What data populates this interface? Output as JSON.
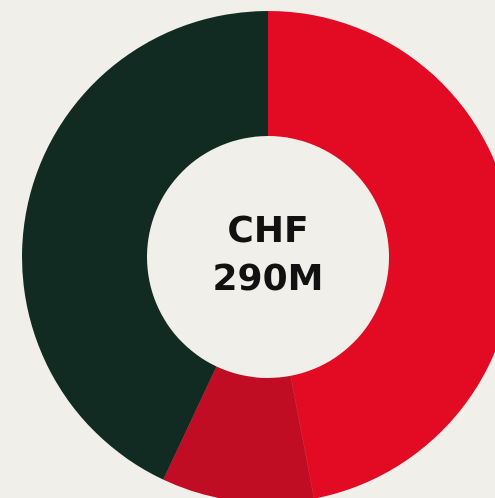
{
  "chart_data": {
    "type": "donut",
    "center_label": [
      "CHF",
      "290M"
    ],
    "values": [
      47,
      10,
      43
    ],
    "colors": [
      "#e30b23",
      "#c00d24",
      "#122b22"
    ]
  }
}
